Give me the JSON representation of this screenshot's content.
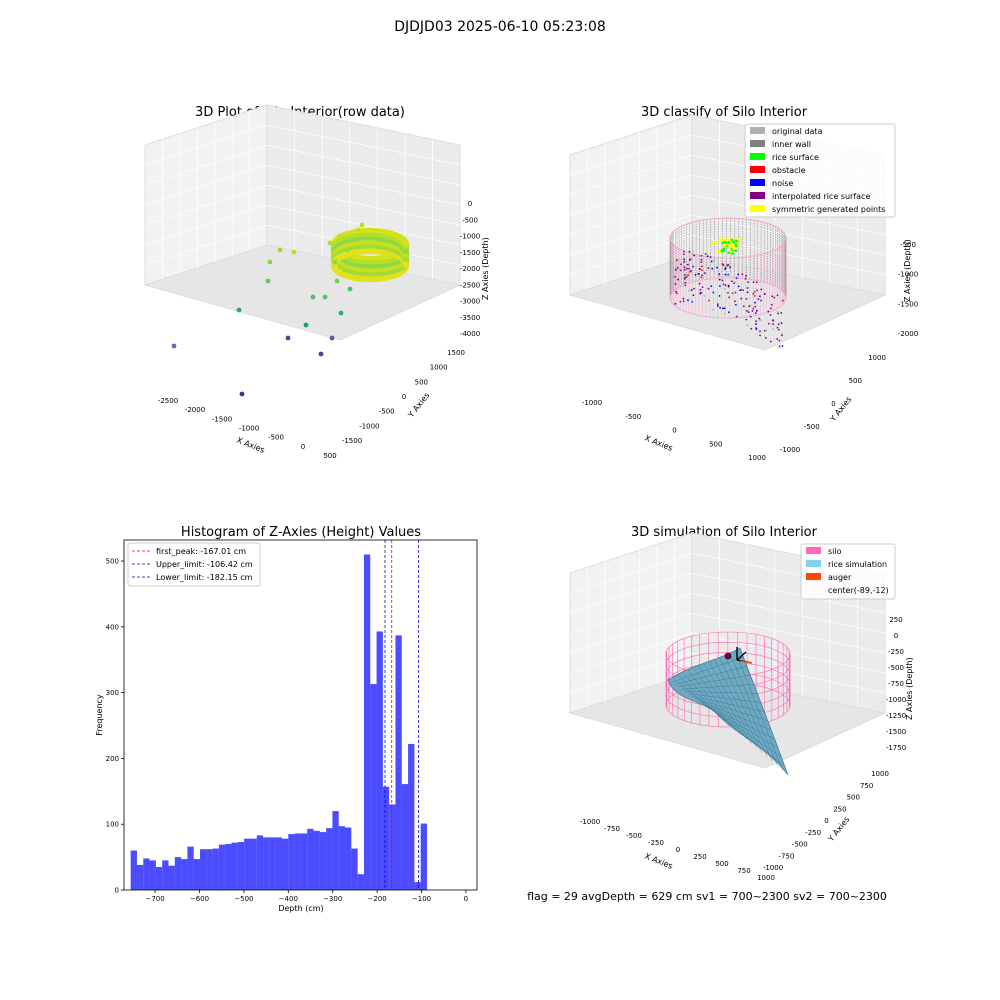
{
  "suptitle": "DJDJD03 2025-06-10 05:23:08",
  "status_line": "flag = 29  avgDepth = 629 cm  sv1 = 700~2300  sv2 = 700~2300",
  "chart_data": [
    {
      "type": "scatter3d",
      "title": "3D Plot of Silo Interior(row data)",
      "xlabel": "X Axies",
      "ylabel": "Y Axies",
      "zlabel": "Z Axies (Depth)",
      "x_ticks": [
        "-2500",
        "-2000",
        "-1500",
        "-1000",
        "-500",
        "0",
        "500"
      ],
      "y_ticks": [
        "-1500",
        "-1000",
        "-500",
        "0",
        "500",
        "1000",
        "1500"
      ],
      "z_ticks": [
        "0",
        "-500",
        "-1000",
        "-1500",
        "-2000",
        "-2500",
        "-3000",
        "-3500",
        "-4000"
      ],
      "xlim": [
        -2600,
        600
      ],
      "ylim": [
        -1600,
        1600
      ],
      "zlim": [
        -4200,
        100
      ],
      "colormap": "viridis (by depth)"
    },
    {
      "type": "scatter3d",
      "title": "3D classify of Silo Interior",
      "xlabel": "X Axies",
      "ylabel": "Y Axies",
      "zlabel": "Z Axies (Depth)",
      "x_ticks": [
        "-1000",
        "-500",
        "0",
        "500",
        "1000"
      ],
      "y_ticks": [
        "-1000",
        "-500",
        "0",
        "500",
        "1000"
      ],
      "z_ticks": [
        "-500",
        "-1000",
        "-1500",
        "-2000"
      ],
      "legend_position": "top-right",
      "legend": [
        {
          "label": "original data",
          "color": "#b0b0b0"
        },
        {
          "label": "inner wall",
          "color": "#808080"
        },
        {
          "label": "rice surface",
          "color": "#00ff00"
        },
        {
          "label": "obstacle",
          "color": "#ff0000"
        },
        {
          "label": "noise",
          "color": "#0000ff"
        },
        {
          "label": "interpolated rice surface",
          "color": "#800080"
        },
        {
          "label": "symmetric generated points",
          "color": "#ffff00"
        }
      ]
    },
    {
      "type": "bar",
      "title": "Histogram of Z-Axies (Height) Values",
      "xlabel": "Depth (cm)",
      "ylabel": "Frequency",
      "xlim": [
        -770,
        25
      ],
      "ylim": [
        0,
        532
      ],
      "x_ticks": [
        -700,
        -600,
        -500,
        -400,
        -300,
        -200,
        -100,
        0
      ],
      "y_ticks": [
        0,
        100,
        200,
        300,
        400,
        500
      ],
      "bar_color": "#0000ff",
      "bin_start": -755,
      "bin_width": 14.2,
      "values": [
        60,
        38,
        48,
        45,
        35,
        45,
        37,
        50,
        47,
        66,
        47,
        62,
        62,
        63,
        69,
        70,
        72,
        73,
        78,
        78,
        83,
        80,
        80,
        80,
        78,
        85,
        86,
        86,
        93,
        90,
        88,
        94,
        120,
        97,
        95,
        63,
        24,
        510,
        313,
        393,
        157,
        130,
        387,
        161,
        222,
        12,
        101
      ],
      "vlines": [
        {
          "label": "first_peak: -167.01 cm",
          "x": -167.01,
          "color": "#ff0000",
          "style": "dashed"
        },
        {
          "label": "Upper_limit: -106.42 cm",
          "x": -106.42,
          "color": "#0000cc",
          "style": "dashed"
        },
        {
          "label": "Lower_limit: -182.15 cm",
          "x": -182.15,
          "color": "#0000cc",
          "style": "dashed"
        }
      ],
      "legend_position": "top-left"
    },
    {
      "type": "surface3d",
      "title": "3D simulation of Silo Interior",
      "xlabel": "X Axies",
      "ylabel": "Y Axies",
      "zlabel": "Z Axies (Depth)",
      "x_ticks": [
        "-1000",
        "-750",
        "-500",
        "-250",
        "0",
        "250",
        "500",
        "750",
        "1000"
      ],
      "y_ticks": [
        "-1000",
        "-750",
        "-500",
        "-250",
        "0",
        "250",
        "500",
        "750",
        "1000"
      ],
      "z_ticks": [
        "250",
        "0",
        "-250",
        "-500",
        "-750",
        "-1000",
        "-1250",
        "-1500",
        "-1750"
      ],
      "legend_position": "top-right",
      "legend": [
        {
          "label": "silo",
          "color": "#ff69b4"
        },
        {
          "label": "rice simulation",
          "color": "#87ceeb"
        },
        {
          "label": "auger",
          "color": "#ff4500"
        },
        {
          "label": "center(-89,-12)",
          "color": ""
        }
      ]
    }
  ]
}
